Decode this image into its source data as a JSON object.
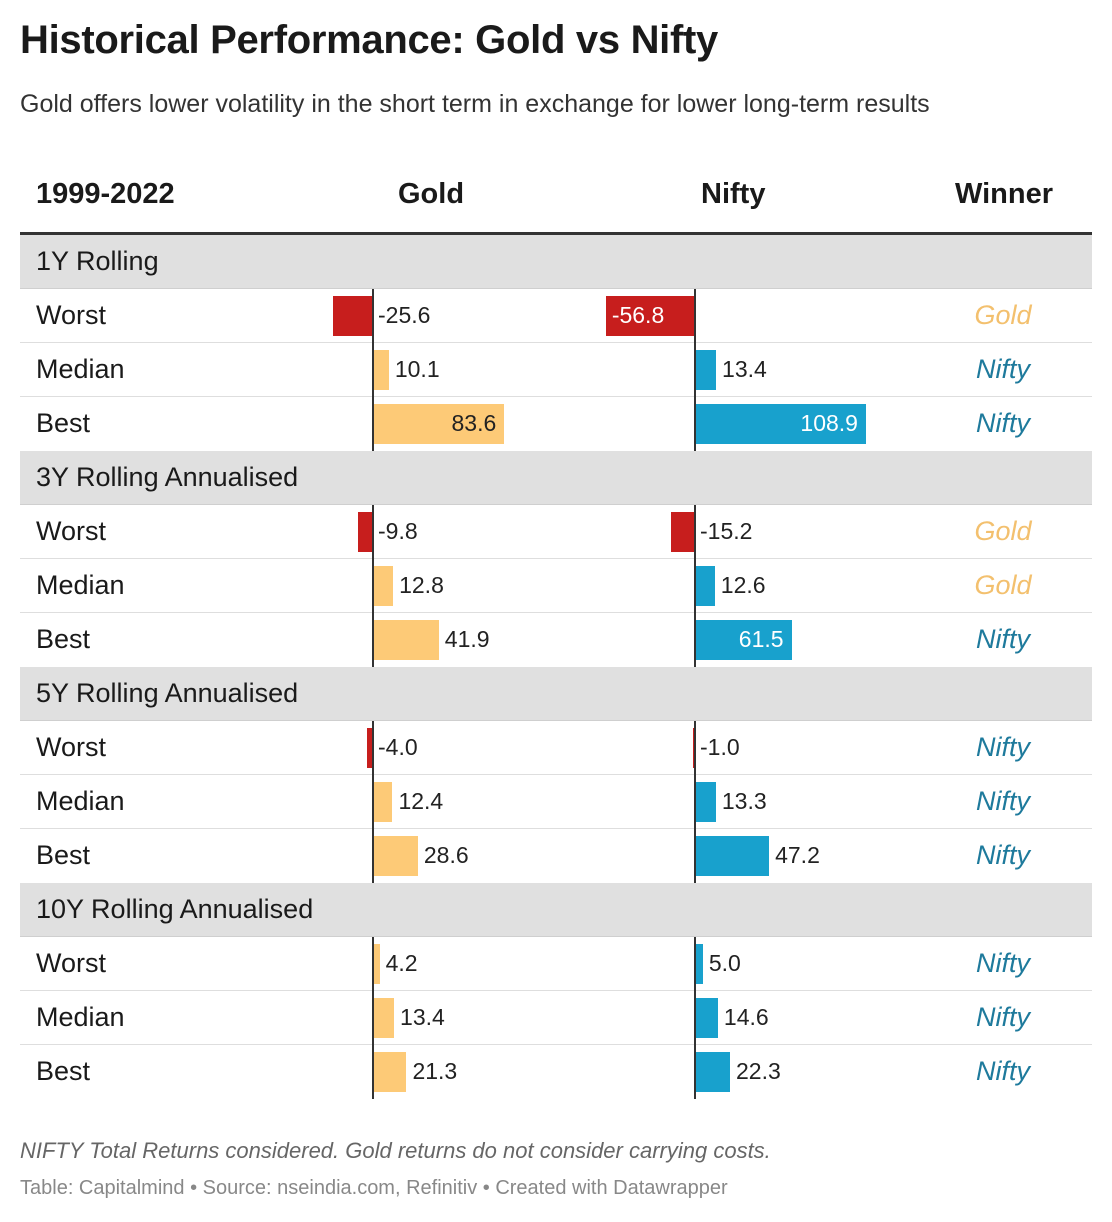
{
  "title": "Historical Performance: Gold vs Nifty",
  "subtitle": "Gold offers lower volatility in the short term in exchange for lower long-term results",
  "header": {
    "period": "1999-2022",
    "gold": "Gold",
    "nifty": "Nifty",
    "winner": "Winner"
  },
  "colors": {
    "gold_bar": "#fdca77",
    "nifty_bar": "#18a1cd",
    "negative_bar": "#c71e1d",
    "gold_winner_text": "#f3c06e",
    "nifty_winner_text": "#1e7a9c",
    "group_background": "#e0e0e0"
  },
  "chart_data": {
    "type": "table",
    "columns": [
      "1999-2022",
      "Gold",
      "Nifty",
      "Winner"
    ],
    "groups": [
      {
        "name": "1Y Rolling",
        "rows": [
          {
            "label": "Worst",
            "gold": -25.6,
            "nifty": -56.8,
            "gold_text": "-25.6",
            "nifty_text": "-56.8",
            "winner": "Gold"
          },
          {
            "label": "Median",
            "gold": 10.1,
            "nifty": 13.4,
            "gold_text": "10.1",
            "nifty_text": "13.4",
            "winner": "Nifty"
          },
          {
            "label": "Best",
            "gold": 83.6,
            "nifty": 108.9,
            "gold_text": "83.6",
            "nifty_text": "108.9",
            "winner": "Nifty"
          }
        ]
      },
      {
        "name": "3Y Rolling Annualised",
        "rows": [
          {
            "label": "Worst",
            "gold": -9.8,
            "nifty": -15.2,
            "gold_text": "-9.8",
            "nifty_text": "-15.2",
            "winner": "Gold"
          },
          {
            "label": "Median",
            "gold": 12.8,
            "nifty": 12.6,
            "gold_text": "12.8",
            "nifty_text": "12.6",
            "winner": "Gold"
          },
          {
            "label": "Best",
            "gold": 41.9,
            "nifty": 61.5,
            "gold_text": "41.9",
            "nifty_text": "61.5",
            "winner": "Nifty"
          }
        ]
      },
      {
        "name": "5Y Rolling Annualised",
        "rows": [
          {
            "label": "Worst",
            "gold": -4.0,
            "nifty": -1.0,
            "gold_text": "-4.0",
            "nifty_text": "-1.0",
            "winner": "Nifty"
          },
          {
            "label": "Median",
            "gold": 12.4,
            "nifty": 13.3,
            "gold_text": "12.4",
            "nifty_text": "13.3",
            "winner": "Nifty"
          },
          {
            "label": "Best",
            "gold": 28.6,
            "nifty": 47.2,
            "gold_text": "28.6",
            "nifty_text": "47.2",
            "winner": "Nifty"
          }
        ]
      },
      {
        "name": "10Y Rolling Annualised",
        "rows": [
          {
            "label": "Worst",
            "gold": 4.2,
            "nifty": 5.0,
            "gold_text": "4.2",
            "nifty_text": "5.0",
            "winner": "Nifty"
          },
          {
            "label": "Median",
            "gold": 13.4,
            "nifty": 14.6,
            "gold_text": "13.4",
            "nifty_text": "14.6",
            "winner": "Nifty"
          },
          {
            "label": "Best",
            "gold": 21.3,
            "nifty": 22.3,
            "gold_text": "21.3",
            "nifty_text": "22.3",
            "winner": "Nifty"
          }
        ]
      }
    ]
  },
  "footer": {
    "note": "NIFTY Total Returns considered. Gold returns do not consider carrying costs.",
    "credits": "Table: Capitalmind • Source: nseindia.com, Refinitiv • Created with Datawrapper"
  }
}
